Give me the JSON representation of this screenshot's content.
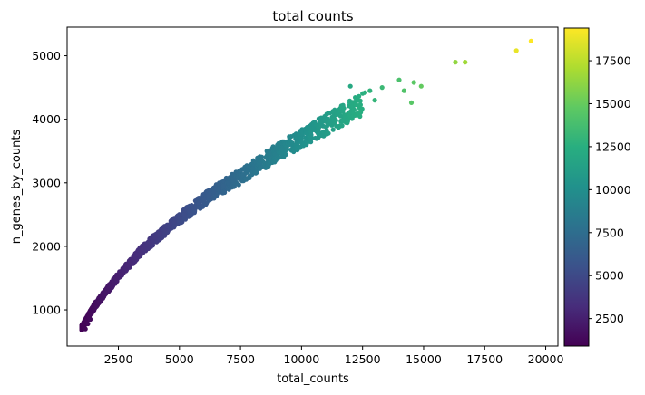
{
  "chart_data": {
    "type": "scatter",
    "title": "total counts",
    "xlabel": "total_counts",
    "ylabel": "n_genes_by_counts",
    "xlim": [
      400,
      20500
    ],
    "ylim": [
      430,
      5450
    ],
    "x_ticks": [
      2500,
      5000,
      7500,
      10000,
      12500,
      15000,
      17500,
      20000
    ],
    "x_tick_labels": [
      "2500",
      "5000",
      "7500",
      "10000",
      "12500",
      "15000",
      "17500",
      "20000"
    ],
    "y_ticks": [
      1000,
      2000,
      3000,
      4000,
      5000
    ],
    "y_tick_labels": [
      "1000",
      "2000",
      "3000",
      "4000",
      "5000"
    ],
    "grid": false,
    "colormap": "viridis",
    "color_variable": "total_counts",
    "colorbar": {
      "range": [
        900,
        19400
      ],
      "ticks": [
        2500,
        5000,
        7500,
        10000,
        12500,
        15000,
        17500
      ],
      "tick_labels": [
        "2500",
        "5000",
        "7500",
        "10000",
        "12500",
        "15000",
        "17500"
      ]
    },
    "trend_points": [
      [
        1000,
        720
      ],
      [
        1500,
        1050
      ],
      [
        2500,
        1530
      ],
      [
        3500,
        1960
      ],
      [
        5000,
        2440
      ],
      [
        6500,
        2880
      ],
      [
        7500,
        3100
      ],
      [
        9000,
        3480
      ],
      [
        10500,
        3810
      ],
      [
        12000,
        4130
      ],
      [
        13500,
        4430
      ],
      [
        15000,
        4620
      ]
    ],
    "points": [
      [
        1050,
        760
      ],
      [
        1080,
        720
      ],
      [
        1120,
        790
      ],
      [
        1150,
        700
      ],
      [
        1200,
        830
      ],
      [
        1250,
        780
      ],
      [
        1300,
        880
      ],
      [
        1350,
        850
      ],
      [
        1400,
        940
      ],
      [
        1500,
        990
      ],
      [
        1600,
        1050
      ],
      [
        1700,
        1120
      ],
      [
        1800,
        1150
      ],
      [
        1900,
        1230
      ],
      [
        2000,
        1260
      ],
      [
        2100,
        1330
      ],
      [
        2200,
        1380
      ],
      [
        2300,
        1420
      ],
      [
        2400,
        1500
      ],
      [
        2500,
        1530
      ],
      [
        2600,
        1560
      ],
      [
        2700,
        1620
      ],
      [
        2800,
        1650
      ],
      [
        2900,
        1700
      ],
      [
        3000,
        1760
      ],
      [
        3100,
        1800
      ],
      [
        3200,
        1830
      ],
      [
        3300,
        1870
      ],
      [
        3400,
        1930
      ],
      [
        3500,
        1960
      ],
      [
        3600,
        2000
      ],
      [
        3700,
        2030
      ],
      [
        3800,
        2060
      ],
      [
        3900,
        2100
      ],
      [
        4000,
        2140
      ],
      [
        4200,
        2200
      ],
      [
        4400,
        2260
      ],
      [
        4600,
        2330
      ],
      [
        4800,
        2380
      ],
      [
        5000,
        2440
      ],
      [
        5200,
        2500
      ],
      [
        5400,
        2560
      ],
      [
        5600,
        2600
      ],
      [
        5800,
        2680
      ],
      [
        6000,
        2720
      ],
      [
        6200,
        2790
      ],
      [
        6400,
        2850
      ],
      [
        6600,
        2900
      ],
      [
        6800,
        2950
      ],
      [
        7000,
        3000
      ],
      [
        7200,
        3040
      ],
      [
        7400,
        3080
      ],
      [
        7600,
        3130
      ],
      [
        7800,
        3200
      ],
      [
        8000,
        3230
      ],
      [
        8300,
        3300
      ],
      [
        8600,
        3380
      ],
      [
        8900,
        3450
      ],
      [
        9200,
        3530
      ],
      [
        9500,
        3600
      ],
      [
        9800,
        3660
      ],
      [
        10000,
        3700
      ],
      [
        10200,
        3780
      ],
      [
        10500,
        3850
      ],
      [
        10800,
        3900
      ],
      [
        11200,
        3960
      ],
      [
        11600,
        4050
      ],
      [
        12000,
        4520
      ],
      [
        12300,
        4100
      ],
      [
        12600,
        4420
      ],
      [
        12800,
        4450
      ],
      [
        13000,
        4300
      ],
      [
        13300,
        4500
      ],
      [
        14000,
        4620
      ],
      [
        14200,
        4450
      ],
      [
        14500,
        4260
      ],
      [
        14600,
        4580
      ],
      [
        14900,
        4520
      ],
      [
        16300,
        4900
      ],
      [
        16700,
        4900
      ],
      [
        18800,
        5080
      ],
      [
        19400,
        5230
      ]
    ]
  }
}
